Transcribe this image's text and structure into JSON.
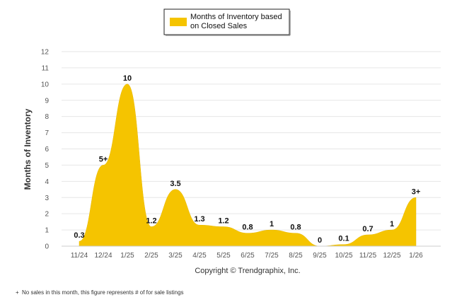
{
  "chart_data": {
    "type": "area",
    "title": "",
    "xlabel": "",
    "ylabel": "Months of Inventory",
    "ylim": [
      0,
      12
    ],
    "yticks": [
      "0",
      "1",
      "2",
      "3",
      "4",
      "5",
      "6",
      "7",
      "8",
      "9",
      "10",
      "11",
      "12"
    ],
    "grid": true,
    "legend_position": "top",
    "categories": [
      "11/24",
      "12/24",
      "1/25",
      "2/25",
      "3/25",
      "4/25",
      "5/25",
      "6/25",
      "7/25",
      "8/25",
      "9/25",
      "10/25",
      "11/25",
      "12/25",
      "1/26"
    ],
    "series": [
      {
        "name": "Months of Inventory based on Closed Sales",
        "color": "#F5C400",
        "values": [
          0.3,
          5,
          10,
          1.2,
          3.5,
          1.3,
          1.2,
          0.8,
          1,
          0.8,
          0,
          0.1,
          0.7,
          1,
          3
        ],
        "labels": [
          "0.3",
          "5+",
          "10",
          "1.2",
          "3.5",
          "1.3",
          "1.2",
          "0.8",
          "1",
          "0.8",
          "0",
          "0.1",
          "0.7",
          "1",
          "3+"
        ]
      }
    ]
  },
  "legend": {
    "line1": "Months of Inventory based",
    "line2": "on Closed Sales"
  },
  "copyright": "Copyright © Trendgraphix, Inc.",
  "footnote": {
    "marker": "+",
    "text": "No sales in this month, this figure represents # of for sale listings"
  }
}
